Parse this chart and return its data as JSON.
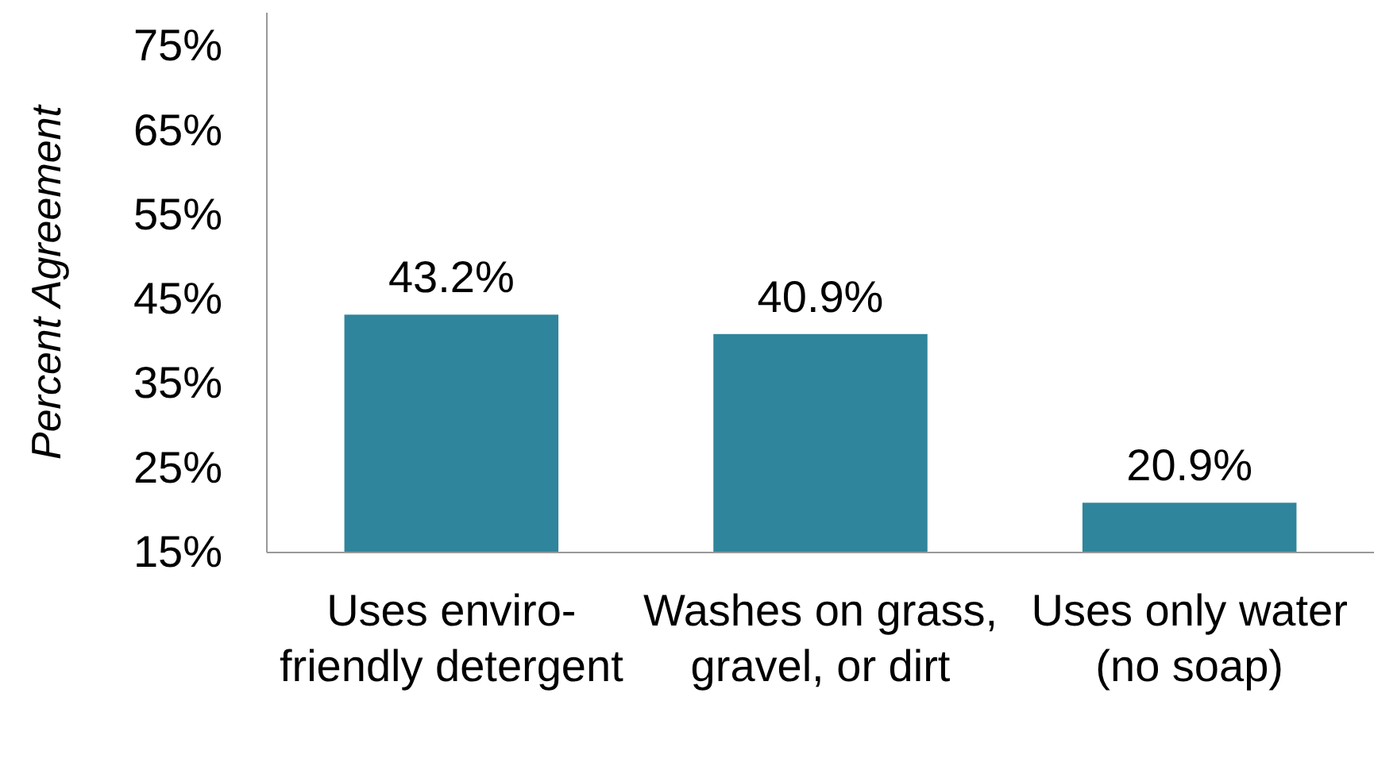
{
  "chart_data": {
    "type": "bar",
    "ylabel": "Percent Agreement",
    "categories": [
      "Uses enviro-friendly detergent",
      "Washes on grass, gravel, or dirt",
      "Uses only water (no soap)"
    ],
    "values": [
      43.2,
      40.9,
      20.9
    ],
    "color": "#2f859b",
    "value_labels": [
      "43.2%",
      "40.9%",
      "20.9%"
    ],
    "ylim": [
      15,
      79
    ],
    "yticks": [
      {
        "value": 15,
        "label": "15%"
      },
      {
        "value": 25,
        "label": "25%"
      },
      {
        "value": 35,
        "label": "35%"
      },
      {
        "value": 45,
        "label": "45%"
      },
      {
        "value": 55,
        "label": "55%"
      },
      {
        "value": 65,
        "label": "65%"
      },
      {
        "value": 75,
        "label": "75%"
      }
    ],
    "grid": false
  }
}
